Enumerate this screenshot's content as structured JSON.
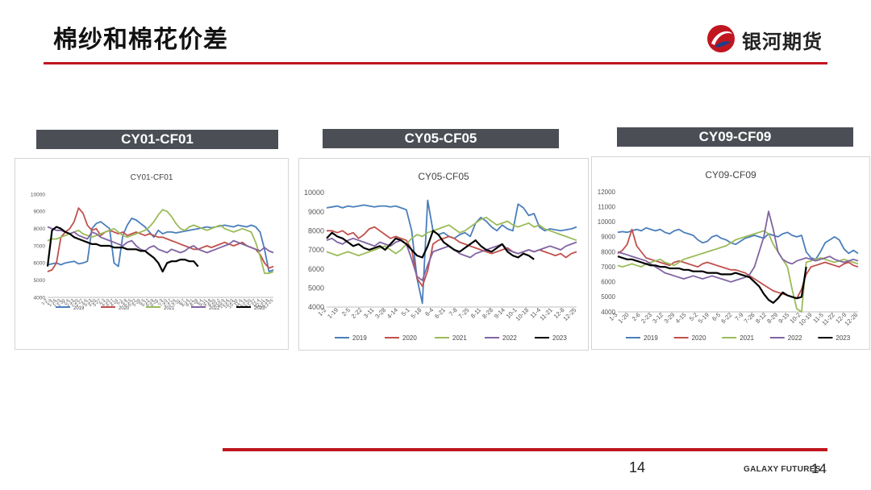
{
  "page": {
    "title": "棉纱和棉花价差",
    "logo_text": "银河期货",
    "page_number": "14",
    "footer_brand": "GALAXY FUTURES",
    "footer_page": "14"
  },
  "colors": {
    "accent_red": "#c0161f",
    "header_gray": "#4b4f55",
    "s2019": "#4a7ebb",
    "s2020": "#c0504d",
    "s2021": "#9bbb59",
    "s2022": "#8064a2",
    "s2023": "#000000"
  },
  "chart_data": [
    {
      "type": "line",
      "header": "CY01-CF01",
      "title": "CY01-CF01",
      "xlabel": "",
      "ylabel": "",
      "ylim": [
        4000,
        10000
      ],
      "yticks": [
        "4000",
        "5000",
        "6000",
        "7000",
        "8000",
        "9000",
        "10000"
      ],
      "xticks": [
        "1-2",
        "1-9",
        "1-16",
        "1-23",
        "1-30",
        "2-6",
        "2-13",
        "2-20",
        "2-27",
        "3-6",
        "3-13",
        "3-20",
        "3-27",
        "4-3",
        "4-10",
        "4-17",
        "4-24",
        "5-1",
        "5-8",
        "5-15",
        "5-22",
        "5-29",
        "6-5",
        "6-12",
        "6-19",
        "6-26",
        "7-3",
        "7-10",
        "7-17",
        "7-24",
        "7-31",
        "8-7",
        "8-14",
        "8-21",
        "8-28",
        "9-4",
        "9-11",
        "9-18",
        "9-25",
        "10-2",
        "10-9",
        "10-16",
        "10-23",
        "10-30",
        "11-6",
        "11-13",
        "11-20",
        "11-27",
        "12-4",
        "12-11",
        "12-18",
        "12-25"
      ],
      "legend": "bottom",
      "series": [
        {
          "name": "2019",
          "color": "#4a7ebb",
          "values": [
            5900,
            5950,
            6000,
            5900,
            6000,
            6050,
            6100,
            5950,
            6000,
            6100,
            8000,
            8300,
            8400,
            8200,
            8000,
            6000,
            5800,
            7600,
            8200,
            8600,
            8500,
            8300,
            8100,
            7800,
            7500,
            7900,
            7700,
            7800,
            7800,
            7750,
            7800,
            7850,
            7900,
            7950,
            8000,
            8050,
            8100,
            8050,
            8100,
            8150,
            8200,
            8150,
            8100,
            8200,
            8150,
            8100,
            8200,
            8100,
            7800,
            6800,
            5500,
            5600
          ]
        },
        {
          "name": "2020",
          "color": "#c0504d",
          "values": [
            5500,
            5600,
            6000,
            7500,
            7800,
            8000,
            8400,
            9200,
            8900,
            8200,
            7900,
            8000,
            7600,
            7800,
            7900,
            7800,
            7700,
            7800,
            7600,
            7700,
            7800,
            7700,
            7600,
            7700,
            7600,
            7500,
            7500,
            7400,
            7300,
            7200,
            7100,
            7000,
            6900,
            6800,
            6800,
            6900,
            7000,
            6900,
            7000,
            7100,
            7200,
            7100,
            7000,
            7100,
            7200,
            7000,
            6900,
            6800,
            6500,
            6000,
            5700,
            5800
          ]
        },
        {
          "name": "2021",
          "color": "#9bbb59",
          "values": [
            7300,
            7400,
            7400,
            7500,
            7600,
            7700,
            7800,
            7900,
            7700,
            7600,
            7500,
            7600,
            7700,
            7800,
            7900,
            8000,
            7800,
            7600,
            7500,
            7600,
            7700,
            7800,
            7900,
            8100,
            8400,
            8800,
            9100,
            9000,
            8700,
            8300,
            8000,
            7900,
            8100,
            8200,
            8100,
            8000,
            7900,
            8000,
            8100,
            8200,
            8000,
            7900,
            7800,
            7900,
            8000,
            7900,
            7800,
            7200,
            6400,
            5400,
            5400,
            5500
          ]
        },
        {
          "name": "2022",
          "color": "#8064a2",
          "values": [
            8100,
            8000,
            7900,
            7900,
            7800,
            7700,
            7800,
            7600,
            7500,
            7400,
            7800,
            7700,
            7500,
            7400,
            7300,
            7200,
            7100,
            7000,
            7200,
            7300,
            7000,
            6800,
            6700,
            6900,
            7000,
            6800,
            6700,
            6600,
            6800,
            6700,
            6600,
            6700,
            6900,
            7000,
            6800,
            6700,
            6600,
            6700,
            6800,
            6900,
            7000,
            7100,
            7300,
            7200,
            7100,
            7000,
            6900,
            6800,
            6700,
            6900,
            6700,
            6600
          ]
        },
        {
          "name": "2023",
          "color": "#000000",
          "values": [
            5800,
            7900,
            8100,
            8000,
            7800,
            7700,
            7500,
            7400,
            7300,
            7200,
            7100,
            7100,
            7000,
            7000,
            7000,
            6900,
            6900,
            6900,
            6800,
            6800,
            6800,
            6700,
            6700,
            6500,
            6300,
            6000,
            5500,
            6000,
            6100,
            6100,
            6200,
            6200,
            6100,
            6100,
            5800,
            null,
            null,
            null,
            null,
            null,
            null,
            null,
            null,
            null,
            null,
            null,
            null,
            null,
            null,
            null,
            null,
            null
          ]
        }
      ]
    },
    {
      "type": "line",
      "header": "CY05-CF05",
      "title": "CY05-CF05",
      "xlabel": "",
      "ylabel": "",
      "ylim": [
        4000,
        10000
      ],
      "yticks": [
        "4000",
        "5000",
        "6000",
        "7000",
        "8000",
        "9000",
        "10000"
      ],
      "xticks": [
        "1-2",
        "1-19",
        "2-5",
        "2-22",
        "3-11",
        "3-28",
        "4-14",
        "5-1",
        "5-18",
        "6-4",
        "6-21",
        "7-8",
        "7-25",
        "8-11",
        "8-28",
        "9-14",
        "10-1",
        "10-18",
        "11-4",
        "11-21",
        "12-8",
        "12-25"
      ],
      "legend": "bottom",
      "series": [
        {
          "name": "2019",
          "color": "#4a7ebb",
          "values": [
            9200,
            9250,
            9300,
            9200,
            9300,
            9250,
            9300,
            9350,
            9300,
            9250,
            9300,
            9300,
            9250,
            9300,
            9200,
            9100,
            8000,
            5500,
            4200,
            9600,
            8000,
            7800,
            7900,
            7700,
            7600,
            7800,
            7900,
            7700,
            8400,
            8700,
            8500,
            8200,
            8000,
            8300,
            8100,
            8000,
            9400,
            9200,
            8800,
            8900,
            8200,
            8000,
            8100,
            8050,
            8000,
            8050,
            8100,
            8200
          ]
        },
        {
          "name": "2020",
          "color": "#c0504d",
          "values": [
            8000,
            8000,
            7900,
            8000,
            7800,
            7900,
            7600,
            7800,
            8100,
            8200,
            8000,
            7800,
            7600,
            7700,
            7600,
            7500,
            7000,
            5500,
            5100,
            5900,
            7300,
            7500,
            7600,
            7700,
            7600,
            7400,
            7300,
            7200,
            7100,
            7000,
            6900,
            6800,
            6900,
            7000,
            7100,
            6900,
            6800,
            6900,
            7000,
            6900,
            7000,
            6900,
            6800,
            6700,
            6800,
            6600,
            6800,
            6900
          ]
        },
        {
          "name": "2021",
          "color": "#9bbb59",
          "values": [
            6900,
            6800,
            6700,
            6800,
            6900,
            6800,
            6700,
            6800,
            6900,
            7000,
            7100,
            7200,
            7000,
            6800,
            7000,
            7300,
            7600,
            7800,
            7700,
            7900,
            8000,
            8100,
            8200,
            8300,
            8100,
            7900,
            8000,
            8200,
            8400,
            8600,
            8700,
            8500,
            8300,
            8400,
            8500,
            8300,
            8200,
            8300,
            8400,
            8200,
            8300,
            8100,
            8000,
            7900,
            7800,
            7700,
            7600,
            7500
          ]
        },
        {
          "name": "2022",
          "color": "#8064a2",
          "values": [
            7500,
            7600,
            7400,
            7300,
            7500,
            7600,
            7500,
            7400,
            7300,
            7200,
            7400,
            7300,
            7200,
            7400,
            7500,
            7300,
            6500,
            5600,
            5400,
            6200,
            6900,
            7000,
            7100,
            7200,
            7000,
            6800,
            6700,
            6600,
            6800,
            6900,
            7000,
            7100,
            7200,
            7300,
            7000,
            6900,
            6800,
            6900,
            7000,
            6900,
            7000,
            7100,
            7200,
            7100,
            7000,
            7200,
            7300,
            7400
          ]
        },
        {
          "name": "2023",
          "color": "#000000",
          "values": [
            7600,
            7900,
            7700,
            7600,
            7400,
            7200,
            7300,
            7100,
            7000,
            7100,
            7200,
            7000,
            7300,
            7600,
            7500,
            7300,
            7000,
            6700,
            6600,
            7200,
            8000,
            7800,
            7400,
            7200,
            7000,
            6900,
            7100,
            7300,
            7500,
            7200,
            7000,
            6900,
            7100,
            7300,
            6900,
            6700,
            6600,
            6800,
            6700,
            6500,
            null,
            null,
            null,
            null,
            null,
            null,
            null,
            null
          ]
        }
      ]
    },
    {
      "type": "line",
      "header": "CY09-CF09",
      "title": "CY09-CF09",
      "xlabel": "",
      "ylabel": "",
      "ylim": [
        4000,
        12000
      ],
      "yticks": [
        "4000",
        "5000",
        "6000",
        "7000",
        "8000",
        "9000",
        "10000",
        "11000",
        "12000"
      ],
      "xticks": [
        "1-3",
        "1-20",
        "2-6",
        "2-23",
        "3-12",
        "3-29",
        "4-15",
        "5-2",
        "5-19",
        "6-5",
        "6-22",
        "7-9",
        "7-26",
        "8-12",
        "8-29",
        "9-15",
        "10-2",
        "10-19",
        "11-5",
        "11-22",
        "12-9",
        "12-26"
      ],
      "legend": "bottom",
      "series": [
        {
          "name": "2019",
          "color": "#4a7ebb",
          "values": [
            9300,
            9350,
            9300,
            9400,
            9500,
            9400,
            9600,
            9500,
            9400,
            9500,
            9300,
            9200,
            9400,
            9500,
            9300,
            9200,
            9100,
            8800,
            8600,
            8700,
            9000,
            9100,
            8900,
            8800,
            8600,
            8500,
            8700,
            8900,
            9000,
            9100,
            9000,
            8900,
            9200,
            9100,
            9000,
            9200,
            9300,
            9100,
            9000,
            9100,
            8000,
            7600,
            7500,
            8000,
            8600,
            8800,
            9000,
            8800,
            8200,
            7900,
            8100,
            7900
          ]
        },
        {
          "name": "2020",
          "color": "#c0504d",
          "values": [
            7900,
            8100,
            8500,
            9500,
            8400,
            8000,
            7600,
            7500,
            7400,
            7300,
            7200,
            7100,
            7300,
            7400,
            7300,
            7200,
            7100,
            7000,
            7200,
            7300,
            7200,
            7100,
            7000,
            6900,
            6800,
            6800,
            6700,
            6600,
            6400,
            6200,
            6000,
            5800,
            5600,
            5400,
            5300,
            5200,
            5100,
            5000,
            4900,
            5500,
            6500,
            7000,
            7100,
            7200,
            7300,
            7200,
            7100,
            7000,
            7200,
            7300,
            7100,
            7000
          ]
        },
        {
          "name": "2021",
          "color": "#9bbb59",
          "values": [
            7100,
            7000,
            7100,
            7200,
            7100,
            7000,
            7200,
            7300,
            7400,
            7500,
            7300,
            7200,
            7100,
            7300,
            7500,
            7600,
            7700,
            7800,
            7900,
            8000,
            8100,
            8200,
            8300,
            8400,
            8600,
            8800,
            8900,
            9000,
            9100,
            9200,
            9300,
            9400,
            9200,
            8500,
            8000,
            7500,
            7000,
            5500,
            4200,
            4000,
            7300,
            7400,
            7500,
            7600,
            7500,
            7400,
            7300,
            7400,
            7500,
            7400,
            7300,
            7200
          ]
        },
        {
          "name": "2022",
          "color": "#8064a2",
          "values": [
            8000,
            7900,
            7800,
            7700,
            7600,
            7500,
            7400,
            7200,
            7000,
            6800,
            6600,
            6500,
            6400,
            6300,
            6200,
            6300,
            6400,
            6300,
            6200,
            6300,
            6400,
            6300,
            6200,
            6100,
            6000,
            6100,
            6200,
            6300,
            6500,
            7000,
            8000,
            9000,
            10700,
            9500,
            8000,
            7500,
            7300,
            7200,
            7400,
            7500,
            7600,
            7500,
            7400,
            7500,
            7600,
            7700,
            7500,
            7400,
            7300,
            7400,
            7500,
            7400
          ]
        },
        {
          "name": "2023",
          "color": "#000000",
          "values": [
            7700,
            7600,
            7500,
            7500,
            7400,
            7300,
            7200,
            7100,
            7100,
            7000,
            7000,
            6900,
            6900,
            6900,
            6800,
            6800,
            6700,
            6700,
            6700,
            6600,
            6600,
            6600,
            6500,
            6500,
            6500,
            6600,
            6500,
            6400,
            6300,
            6000,
            5700,
            5200,
            4800,
            4600,
            4900,
            5300,
            5100,
            5000,
            4900,
            5000,
            7000,
            null,
            null,
            null,
            null,
            null,
            null,
            null,
            null,
            null,
            null,
            null
          ]
        }
      ]
    }
  ]
}
